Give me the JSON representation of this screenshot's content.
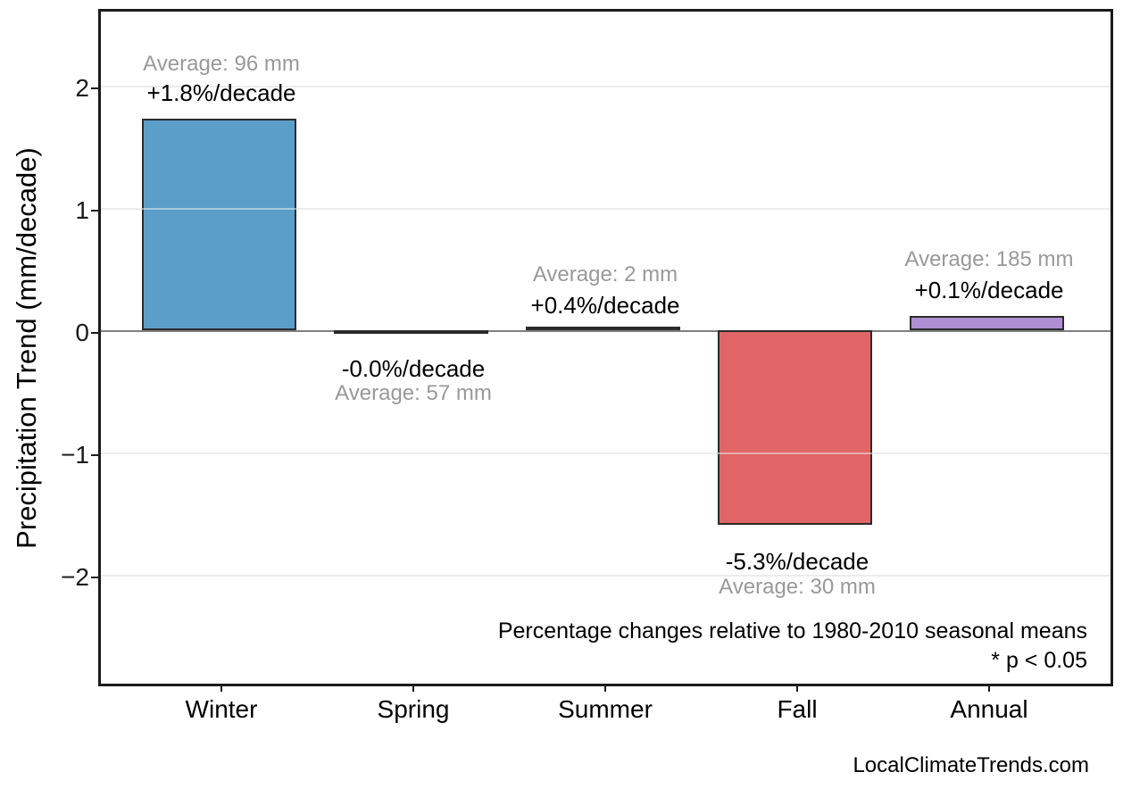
{
  "chart_data": {
    "type": "bar",
    "title": "",
    "xlabel": "",
    "ylabel": "Precipitation Trend (mm/decade)",
    "categories": [
      "Winter",
      "Spring",
      "Summer",
      "Fall",
      "Annual"
    ],
    "values": [
      1.73,
      -0.01,
      0.01,
      -1.59,
      0.12
    ],
    "units": "mm/decade",
    "bar_colors": [
      "#5B9EC9",
      "#DF6566",
      "#5B9EC9",
      "#DF6566",
      "#AF8FD4"
    ],
    "ylim": [
      -2.9,
      2.6
    ],
    "yticks": [
      2,
      1,
      0,
      -1,
      -2
    ],
    "ytick_labels": [
      "2",
      "1",
      "0",
      "−1",
      "−2"
    ],
    "grid": "horizontal-major",
    "legend": "none",
    "annotations": [
      {
        "category": "Winter",
        "pct": "+1.8%/decade",
        "avg": "Average: 96 mm"
      },
      {
        "category": "Spring",
        "pct": "-0.0%/decade",
        "avg": "Average: 57 mm"
      },
      {
        "category": "Summer",
        "pct": "+0.4%/decade",
        "avg": "Average: 2 mm"
      },
      {
        "category": "Fall",
        "pct": "-5.3%/decade",
        "avg": "Average: 30 mm"
      },
      {
        "category": "Annual",
        "pct": "+0.1%/decade",
        "avg": "Average: 185 mm"
      }
    ],
    "caption_line1": "Percentage changes relative to 1980-2010 seasonal means",
    "caption_line2": "* p < 0.05"
  },
  "colors": {
    "grid": "#ececec",
    "zero_line": "#7f7f7f",
    "bar_border": "#2b2b2b",
    "plot_border": "#1b1b1b",
    "avg_text": "#999999",
    "pct_text": "#000000"
  },
  "footer": {
    "watermark": "LocalClimateTrends.com"
  }
}
